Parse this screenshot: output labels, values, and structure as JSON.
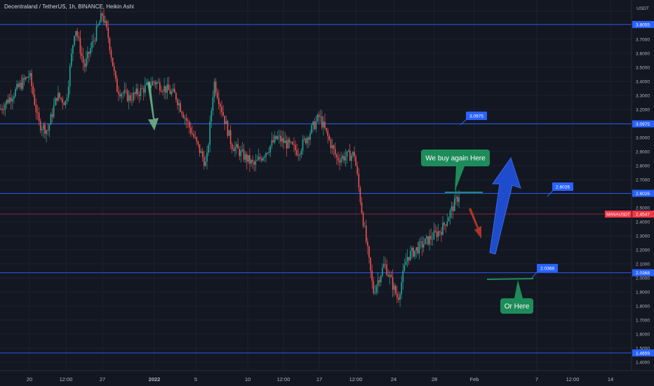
{
  "header": {
    "symbol": "Decentraland / TetherUS, 1h, BINANCE, Heikin Ashi"
  },
  "price_axis": {
    "currency": "USDT",
    "ticks": [
      "3.9000",
      "3.8055",
      "3.7000",
      "3.6000",
      "3.5000",
      "3.4000",
      "3.3000",
      "3.2000",
      "3.1000",
      "3.0000",
      "2.9000",
      "2.8000",
      "2.7000",
      "2.6000",
      "2.5000",
      "2.4000",
      "2.3000",
      "2.2000",
      "2.1000",
      "2.0000",
      "1.9000",
      "1.8000",
      "1.7000",
      "1.6000",
      "1.5000",
      "1.4000"
    ]
  },
  "time_axis": {
    "ticks": [
      "20",
      "12:00",
      "27",
      "2022",
      "5",
      "10",
      "12:00",
      "17",
      "12:00",
      "24",
      "28",
      "Feb",
      "7",
      "12:00",
      "14"
    ]
  },
  "chart_data": {
    "type": "candlestick",
    "title": "Decentraland / TetherUS, 1h, BINANCE, Heikin Ashi",
    "ylabel": "USDT",
    "ylim": [
      1.38,
      3.92
    ],
    "x_range_days": [
      "Dec 19",
      "Feb 15"
    ],
    "price_path": [
      {
        "x": "Dec 19",
        "y": 3.2
      },
      {
        "x": "Dec 20",
        "y": 3.45
      },
      {
        "x": "Dec 21",
        "y": 3.1
      },
      {
        "x": "Dec 22",
        "y": 3.05
      },
      {
        "x": "Dec 23",
        "y": 3.3
      },
      {
        "x": "Dec 24",
        "y": 3.25
      },
      {
        "x": "Dec 25",
        "y": 3.8
      },
      {
        "x": "Dec 26",
        "y": 3.5
      },
      {
        "x": "Dec 27",
        "y": 3.88
      },
      {
        "x": "Dec 28",
        "y": 3.7
      },
      {
        "x": "Dec 29",
        "y": 3.35
      },
      {
        "x": "Dec 30",
        "y": 3.28
      },
      {
        "x": "Jan 1",
        "y": 3.4
      },
      {
        "x": "Jan 3",
        "y": 3.3
      },
      {
        "x": "Jan 5",
        "y": 2.8
      },
      {
        "x": "Jan 6",
        "y": 3.4
      },
      {
        "x": "Jan 8",
        "y": 2.95
      },
      {
        "x": "Jan 10",
        "y": 2.8
      },
      {
        "x": "Jan 12",
        "y": 3.0
      },
      {
        "x": "Jan 14",
        "y": 2.9
      },
      {
        "x": "Jan 17",
        "y": 3.15
      },
      {
        "x": "Jan 19",
        "y": 2.85
      },
      {
        "x": "Jan 20",
        "y": 2.88
      },
      {
        "x": "Jan 21",
        "y": 2.5
      },
      {
        "x": "Jan 22",
        "y": 1.9
      },
      {
        "x": "Jan 23",
        "y": 2.1
      },
      {
        "x": "Jan 24",
        "y": 1.85
      },
      {
        "x": "Jan 25",
        "y": 2.15
      },
      {
        "x": "Jan 27",
        "y": 2.25
      },
      {
        "x": "Jan 29",
        "y": 2.35
      },
      {
        "x": "Jan 30",
        "y": 2.6
      }
    ],
    "horizontal_lines": [
      {
        "price": 3.8055,
        "color": "#2962ff"
      },
      {
        "price": 3.0975,
        "color": "#2962ff"
      },
      {
        "price": 2.6026,
        "color": "#2962ff"
      },
      {
        "price": 2.4547,
        "color": "#f23645"
      },
      {
        "price": 2.0368,
        "color": "#2962ff"
      },
      {
        "price": 1.4659,
        "color": "#2962ff"
      }
    ],
    "axis_labels": [
      {
        "text": "3.8055",
        "y": 3.8055,
        "color": "#2962ff"
      },
      {
        "text": "3.0975",
        "y": 3.0975,
        "color": "#2962ff"
      },
      {
        "text": "2.6026",
        "y": 2.6026,
        "color": "#2962ff"
      },
      {
        "text": "2.4547",
        "y": 2.4547,
        "color": "#f23645"
      },
      {
        "text": "2.0368",
        "y": 2.0368,
        "color": "#2962ff"
      },
      {
        "text": "1.4659",
        "y": 1.4659,
        "color": "#2962ff"
      }
    ],
    "current_price_tag": "MANAUSDT",
    "callouts": [
      {
        "text": "3.0975",
        "color": "#2962ff"
      },
      {
        "text": "2.6026",
        "color": "#2962ff"
      },
      {
        "text": "2.0368",
        "color": "#2962ff"
      }
    ],
    "annotations": [
      {
        "text": "We buy again Here",
        "color": "#1e8c5a"
      },
      {
        "text": "Or Here",
        "color": "#1e8c5a"
      }
    ],
    "colors": {
      "up": "#26a69a",
      "down": "#ef5350",
      "background": "#131722"
    }
  }
}
